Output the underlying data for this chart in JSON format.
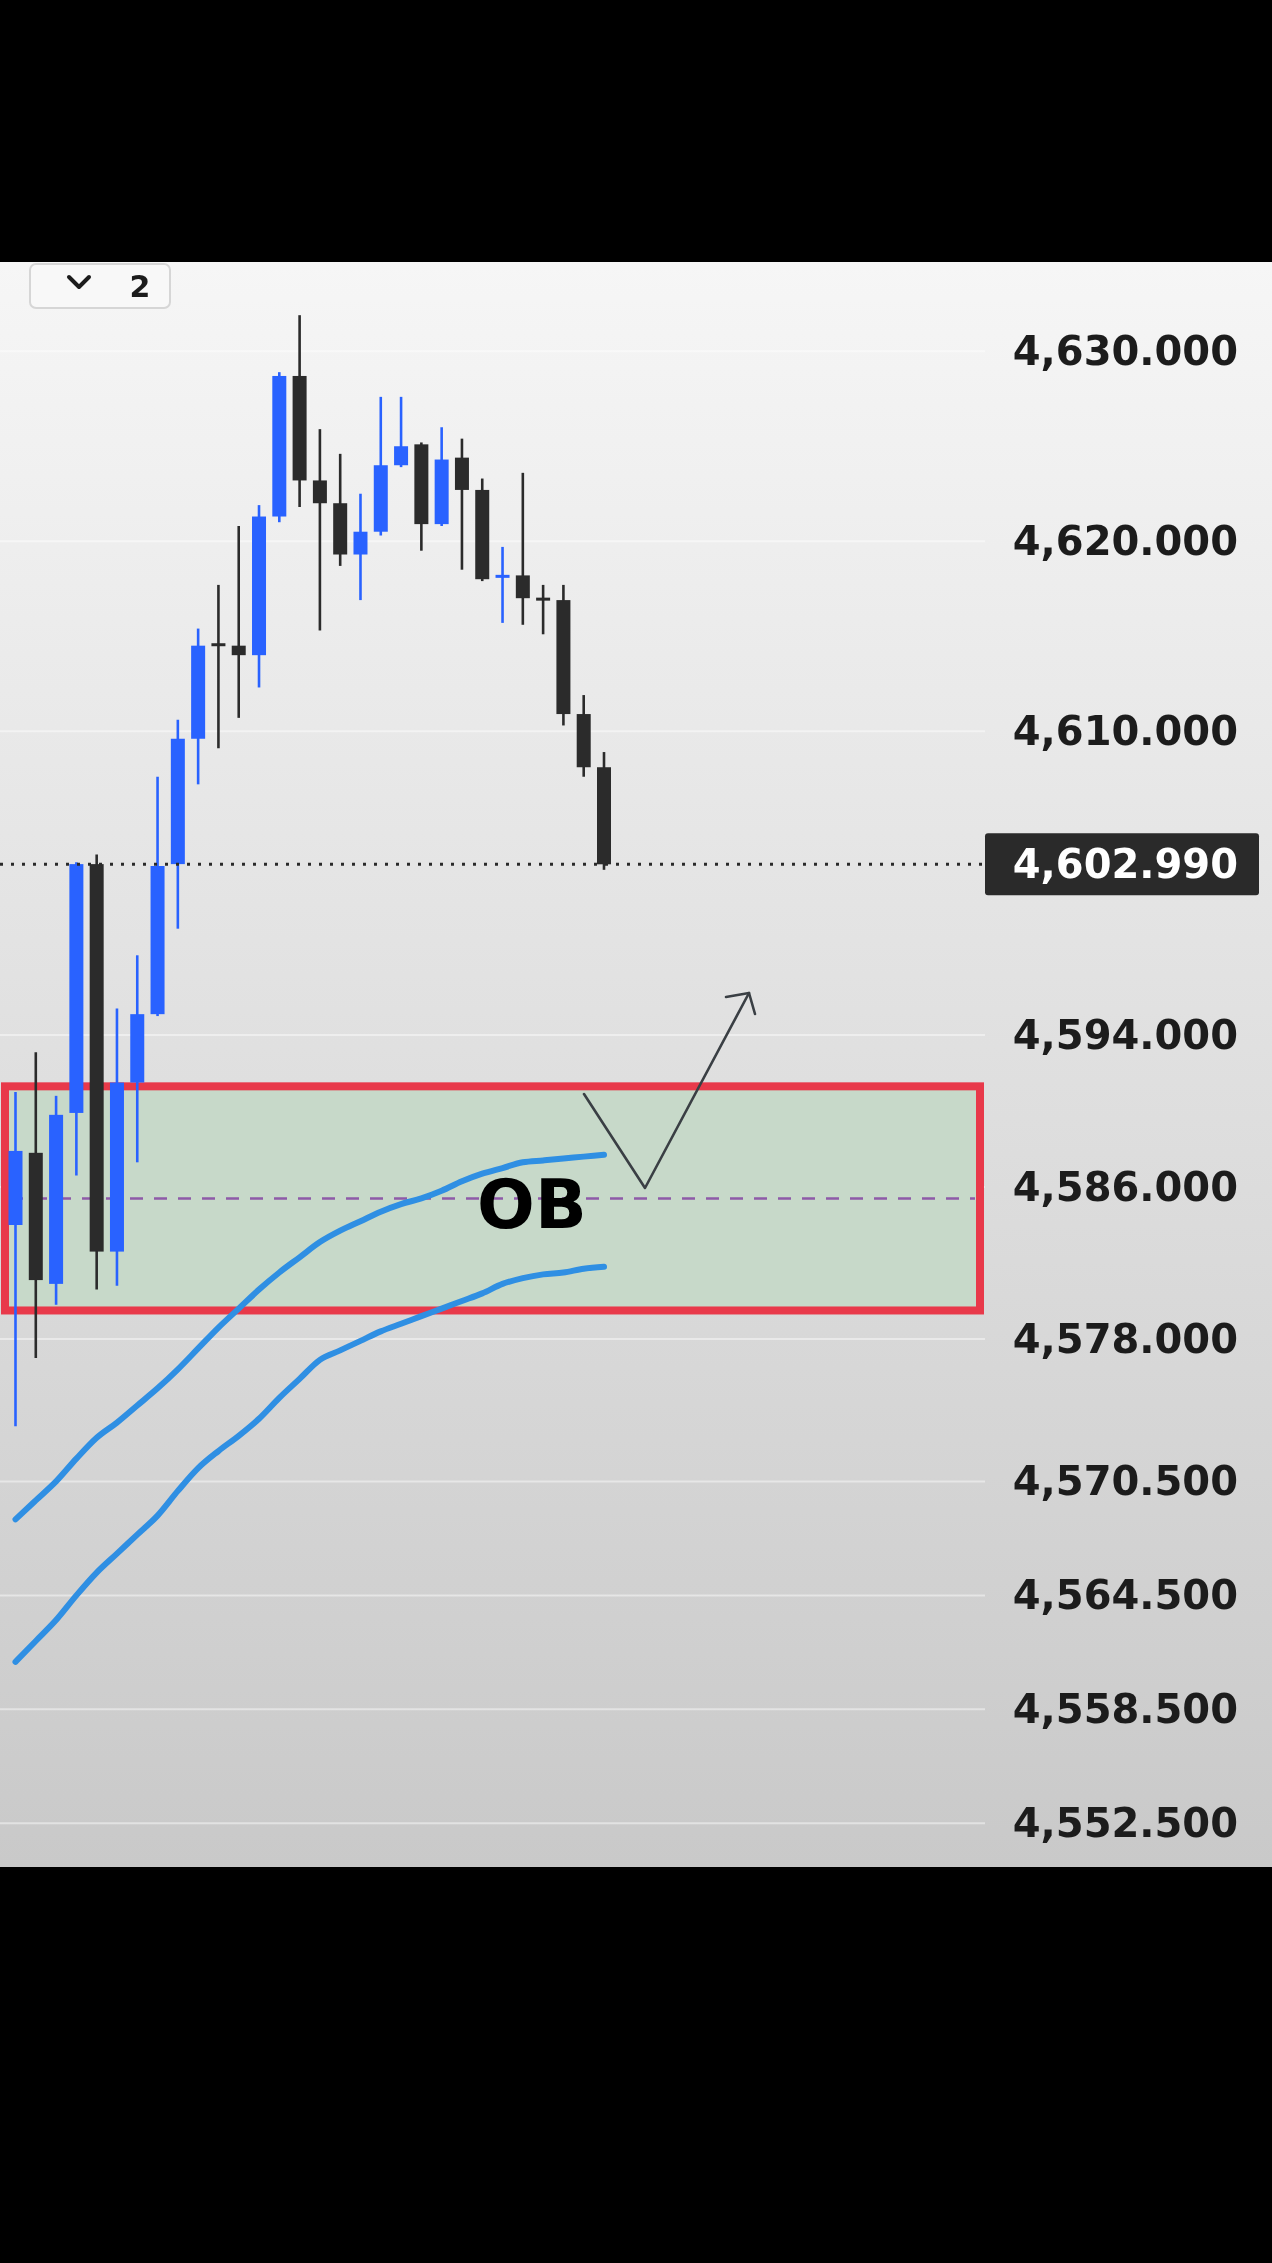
{
  "chart_data": {
    "type": "candlestick",
    "categories": [
      null,
      null,
      null,
      null,
      null,
      null,
      null,
      null,
      null,
      null,
      null,
      null,
      null,
      null,
      null,
      null,
      null,
      null,
      null,
      null,
      null,
      null,
      null,
      null,
      null,
      null,
      null,
      null,
      null,
      null
    ],
    "ohlc": [
      [
        4584.0,
        4591.0,
        4573.4,
        4587.9
      ],
      [
        4587.8,
        4593.1,
        4577.0,
        4581.1
      ],
      [
        4580.9,
        4590.8,
        4579.8,
        4589.8
      ],
      [
        4589.9,
        4603.1,
        4586.6,
        4603.0
      ],
      [
        4603.0,
        4603.5,
        4580.6,
        4582.6
      ],
      [
        4582.6,
        4595.4,
        4580.8,
        4591.5
      ],
      [
        4591.5,
        4598.2,
        4587.3,
        4595.1
      ],
      [
        4595.1,
        4607.6,
        4595.0,
        4602.9
      ],
      [
        4603.0,
        4610.6,
        4599.6,
        4609.6
      ],
      [
        4609.6,
        4615.4,
        4607.2,
        4614.5
      ],
      [
        4614.6,
        4617.7,
        4609.1,
        4614.5
      ],
      [
        4614.5,
        4620.8,
        4610.7,
        4614.0
      ],
      [
        4614.0,
        4621.9,
        4612.3,
        4621.3
      ],
      [
        4621.3,
        4628.9,
        4621.0,
        4628.7
      ],
      [
        4628.7,
        4631.9,
        4621.8,
        4623.2
      ],
      [
        4623.2,
        4625.9,
        4615.3,
        4622.0
      ],
      [
        4622.0,
        4624.6,
        4618.7,
        4619.3
      ],
      [
        4619.3,
        4622.5,
        4616.9,
        4620.5
      ],
      [
        4620.5,
        4627.6,
        4620.3,
        4624.0
      ],
      [
        4624.0,
        4627.6,
        4623.9,
        4625.0
      ],
      [
        4625.1,
        4625.2,
        4619.5,
        4620.9
      ],
      [
        4620.9,
        4626.0,
        4620.8,
        4624.3
      ],
      [
        4624.4,
        4625.4,
        4618.5,
        4622.7
      ],
      [
        4622.7,
        4623.3,
        4617.9,
        4618.0
      ],
      [
        4618.1,
        4619.7,
        4615.7,
        4618.2
      ],
      [
        4618.2,
        4623.6,
        4615.6,
        4617.0
      ],
      [
        4617.0,
        4617.7,
        4615.1,
        4616.9
      ],
      [
        4616.9,
        4617.7,
        4610.3,
        4610.9
      ],
      [
        4610.9,
        4611.9,
        4607.6,
        4608.1
      ],
      [
        4608.1,
        4608.9,
        4602.7,
        4602.99
      ]
    ],
    "series": [
      {
        "type": "line",
        "color": "#2f8fe3",
        "values": [
          4568.5,
          4569.5,
          4570.5,
          4571.7,
          4572.8,
          4573.6,
          4574.5,
          4575.4,
          4576.4,
          4577.5,
          4578.6,
          4579.6,
          4580.6,
          4581.5,
          4582.3,
          4583.1,
          4583.7,
          4584.2,
          4584.7,
          4585.1,
          4585.4,
          4585.8,
          4586.3,
          4586.7,
          4587.0,
          4587.3,
          4587.4,
          4587.5,
          4587.6,
          4587.7
        ]
      },
      {
        "type": "line",
        "color": "#2f8fe3",
        "values": [
          4561.0,
          4562.1,
          4563.2,
          4564.5,
          4565.7,
          4566.7,
          4567.7,
          4568.7,
          4570.0,
          4571.2,
          4572.1,
          4572.9,
          4573.8,
          4574.9,
          4575.9,
          4576.9,
          4577.4,
          4577.9,
          4578.4,
          4578.8,
          4579.2,
          4579.6,
          4580.0,
          4580.4,
          4580.9,
          4581.2,
          4581.4,
          4581.5,
          4581.7,
          4581.8
        ]
      }
    ],
    "ylim": [
      4550.2,
      4634.7
    ],
    "yticks": [
      {
        "value": 4630,
        "label": "4,630.000"
      },
      {
        "value": 4620,
        "label": "4,620.000"
      },
      {
        "value": 4610,
        "label": "4,610.000"
      },
      {
        "value": 4594,
        "label": "4,594.000"
      },
      {
        "value": 4586,
        "label": "4,586.000"
      },
      {
        "value": 4578,
        "label": "4,578.000"
      },
      {
        "value": 4570.5,
        "label": "4,570.500"
      },
      {
        "value": 4564.5,
        "label": "4,564.500"
      },
      {
        "value": 4558.5,
        "label": "4,558.500"
      },
      {
        "value": 4552.5,
        "label": "4,552.500"
      }
    ],
    "tick_labels": "y",
    "grid": "y",
    "ref_lines": [
      {
        "axis": "y",
        "value": 4602.99,
        "label": "4,602.990",
        "line_style": "dotted",
        "color": "#2a2a2a"
      },
      {
        "axis": "y",
        "value": 4585.4,
        "line_style": "dashed",
        "color": "#8e5aa8"
      }
    ],
    "bands": [
      {
        "axis": "y",
        "from": 4579.5,
        "to": 4591.3,
        "label": "OB",
        "color": "#c7d9c9"
      }
    ],
    "annotations": [
      "2"
    ]
  }
}
